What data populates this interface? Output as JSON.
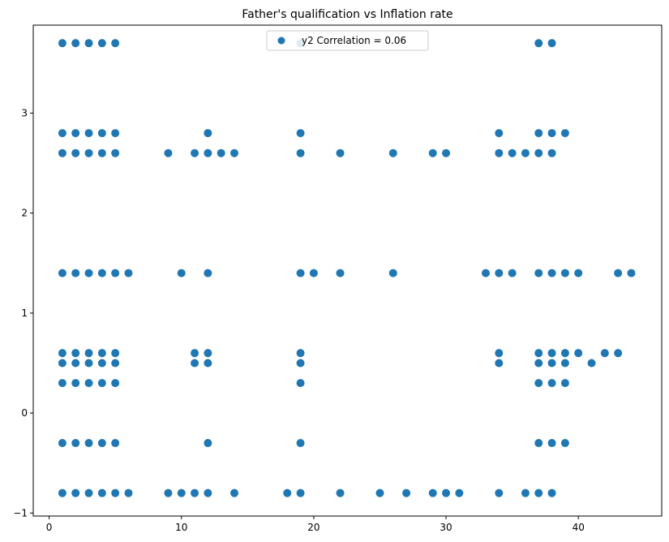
{
  "chart_data": {
    "type": "scatter",
    "title": "Father's qualification vs Inflation rate",
    "xlabel": "",
    "ylabel": "",
    "xlim": [
      -1.2,
      46.3
    ],
    "ylim": [
      -1.03,
      3.88
    ],
    "xticks": [
      0,
      10,
      20,
      30,
      40
    ],
    "yticks": [
      -1,
      0,
      1,
      2,
      3
    ],
    "legend_position": "top-center",
    "grid": false,
    "series": [
      {
        "name": "y2 Correlation = 0.06",
        "color": "#1f77b4",
        "points": [
          [
            1,
            3.7
          ],
          [
            2,
            3.7
          ],
          [
            3,
            3.7
          ],
          [
            4,
            3.7
          ],
          [
            5,
            3.7
          ],
          [
            19,
            3.7
          ],
          [
            37,
            3.7
          ],
          [
            38,
            3.7
          ],
          [
            1,
            2.8
          ],
          [
            2,
            2.8
          ],
          [
            3,
            2.8
          ],
          [
            4,
            2.8
          ],
          [
            5,
            2.8
          ],
          [
            12,
            2.8
          ],
          [
            19,
            2.8
          ],
          [
            34,
            2.8
          ],
          [
            37,
            2.8
          ],
          [
            38,
            2.8
          ],
          [
            39,
            2.8
          ],
          [
            1,
            2.6
          ],
          [
            2,
            2.6
          ],
          [
            3,
            2.6
          ],
          [
            4,
            2.6
          ],
          [
            5,
            2.6
          ],
          [
            9,
            2.6
          ],
          [
            11,
            2.6
          ],
          [
            12,
            2.6
          ],
          [
            13,
            2.6
          ],
          [
            14,
            2.6
          ],
          [
            19,
            2.6
          ],
          [
            22,
            2.6
          ],
          [
            26,
            2.6
          ],
          [
            29,
            2.6
          ],
          [
            30,
            2.6
          ],
          [
            34,
            2.6
          ],
          [
            35,
            2.6
          ],
          [
            36,
            2.6
          ],
          [
            37,
            2.6
          ],
          [
            38,
            2.6
          ],
          [
            1,
            1.4
          ],
          [
            2,
            1.4
          ],
          [
            3,
            1.4
          ],
          [
            4,
            1.4
          ],
          [
            5,
            1.4
          ],
          [
            6,
            1.4
          ],
          [
            10,
            1.4
          ],
          [
            12,
            1.4
          ],
          [
            19,
            1.4
          ],
          [
            20,
            1.4
          ],
          [
            22,
            1.4
          ],
          [
            26,
            1.4
          ],
          [
            33,
            1.4
          ],
          [
            34,
            1.4
          ],
          [
            35,
            1.4
          ],
          [
            37,
            1.4
          ],
          [
            38,
            1.4
          ],
          [
            39,
            1.4
          ],
          [
            40,
            1.4
          ],
          [
            43,
            1.4
          ],
          [
            44,
            1.4
          ],
          [
            1,
            0.6
          ],
          [
            2,
            0.6
          ],
          [
            3,
            0.6
          ],
          [
            4,
            0.6
          ],
          [
            5,
            0.6
          ],
          [
            11,
            0.6
          ],
          [
            12,
            0.6
          ],
          [
            19,
            0.6
          ],
          [
            34,
            0.6
          ],
          [
            37,
            0.6
          ],
          [
            38,
            0.6
          ],
          [
            39,
            0.6
          ],
          [
            40,
            0.6
          ],
          [
            42,
            0.6
          ],
          [
            43,
            0.6
          ],
          [
            1,
            0.5
          ],
          [
            2,
            0.5
          ],
          [
            3,
            0.5
          ],
          [
            4,
            0.5
          ],
          [
            5,
            0.5
          ],
          [
            11,
            0.5
          ],
          [
            12,
            0.5
          ],
          [
            19,
            0.5
          ],
          [
            34,
            0.5
          ],
          [
            37,
            0.5
          ],
          [
            38,
            0.5
          ],
          [
            39,
            0.5
          ],
          [
            41,
            0.5
          ],
          [
            1,
            0.3
          ],
          [
            2,
            0.3
          ],
          [
            3,
            0.3
          ],
          [
            4,
            0.3
          ],
          [
            5,
            0.3
          ],
          [
            19,
            0.3
          ],
          [
            37,
            0.3
          ],
          [
            38,
            0.3
          ],
          [
            39,
            0.3
          ],
          [
            1,
            -0.3
          ],
          [
            2,
            -0.3
          ],
          [
            3,
            -0.3
          ],
          [
            4,
            -0.3
          ],
          [
            5,
            -0.3
          ],
          [
            12,
            -0.3
          ],
          [
            19,
            -0.3
          ],
          [
            37,
            -0.3
          ],
          [
            38,
            -0.3
          ],
          [
            39,
            -0.3
          ],
          [
            1,
            -0.8
          ],
          [
            2,
            -0.8
          ],
          [
            3,
            -0.8
          ],
          [
            4,
            -0.8
          ],
          [
            5,
            -0.8
          ],
          [
            6,
            -0.8
          ],
          [
            9,
            -0.8
          ],
          [
            10,
            -0.8
          ],
          [
            11,
            -0.8
          ],
          [
            12,
            -0.8
          ],
          [
            14,
            -0.8
          ],
          [
            18,
            -0.8
          ],
          [
            19,
            -0.8
          ],
          [
            22,
            -0.8
          ],
          [
            25,
            -0.8
          ],
          [
            27,
            -0.8
          ],
          [
            29,
            -0.8
          ],
          [
            30,
            -0.8
          ],
          [
            31,
            -0.8
          ],
          [
            34,
            -0.8
          ],
          [
            36,
            -0.8
          ],
          [
            37,
            -0.8
          ],
          [
            38,
            -0.8
          ]
        ]
      }
    ]
  }
}
